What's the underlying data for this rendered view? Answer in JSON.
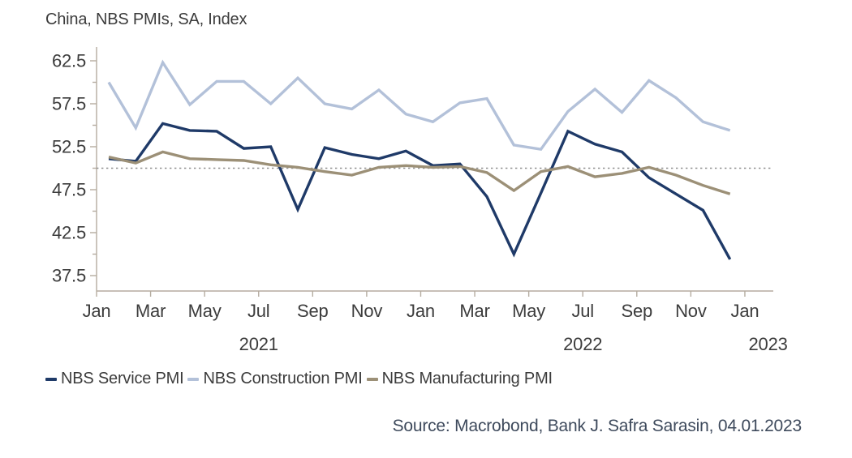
{
  "header": {
    "title": "China, NBS PMIs, SA, Index"
  },
  "footer": {
    "source": "Source: Macrobond, Bank J. Safra Sarasin, 04.01.2023"
  },
  "colors": {
    "service": "#1F3A68",
    "construction": "#B3C1D9",
    "manufacturing": "#9C9077",
    "axis": "#B5ACA0",
    "reference_line": "#909090",
    "text": "#3C3C3C",
    "source_text": "#3E4A5C"
  },
  "chart_data": {
    "type": "line",
    "title": "China, NBS PMIs, SA, Index",
    "xlabel": "",
    "ylabel": "",
    "grid": false,
    "legend_position": "bottom-left",
    "categories": [
      "Jan 2021",
      "Feb 2021",
      "Mar 2021",
      "Apr 2021",
      "May 2021",
      "Jun 2021",
      "Jul 2021",
      "Aug 2021",
      "Sep 2021",
      "Oct 2021",
      "Nov 2021",
      "Dec 2021",
      "Jan 2022",
      "Feb 2022",
      "Mar 2022",
      "Apr 2022",
      "May 2022",
      "Jun 2022",
      "Jul 2022",
      "Aug 2022",
      "Sep 2022",
      "Oct 2022",
      "Nov 2022",
      "Dec 2022"
    ],
    "series": [
      {
        "name": "NBS Service PMI",
        "color": "#1F3A68",
        "values": [
          51.1,
          50.8,
          55.2,
          54.4,
          54.3,
          52.3,
          52.5,
          45.2,
          52.4,
          51.6,
          51.1,
          52.0,
          50.3,
          50.5,
          46.7,
          40.0,
          47.1,
          54.3,
          52.8,
          51.9,
          48.9,
          47.0,
          45.1,
          39.4
        ]
      },
      {
        "name": "NBS Construction PMI",
        "color": "#B3C1D9",
        "values": [
          60.0,
          54.7,
          62.3,
          57.4,
          60.1,
          60.1,
          57.5,
          60.5,
          57.5,
          56.9,
          59.1,
          56.3,
          55.4,
          57.6,
          58.1,
          52.7,
          52.2,
          56.6,
          59.2,
          56.5,
          60.2,
          58.2,
          55.4,
          54.4
        ]
      },
      {
        "name": "NBS Manufacturing PMI",
        "color": "#9C9077",
        "values": [
          51.3,
          50.6,
          51.9,
          51.1,
          51.0,
          50.9,
          50.4,
          50.1,
          49.6,
          49.2,
          50.1,
          50.3,
          50.1,
          50.2,
          49.5,
          47.4,
          49.6,
          50.2,
          49.0,
          49.4,
          50.1,
          49.2,
          48.0,
          47.0
        ]
      }
    ],
    "y_axis": {
      "tick_labels": [
        "62.5",
        "57.5",
        "52.5",
        "47.5",
        "42.5",
        "37.5"
      ],
      "tick_values": [
        62.5,
        57.5,
        52.5,
        47.5,
        42.5,
        37.5
      ],
      "minor_tick_values": [
        60,
        55,
        50,
        45,
        40
      ],
      "range_shown": [
        35.7,
        64.1
      ]
    },
    "x_axis": {
      "tick_labels": [
        "Jan",
        "Mar",
        "May",
        "Jul",
        "Sep",
        "Nov",
        "Jan",
        "Mar",
        "May",
        "Jul",
        "Sep",
        "Nov",
        "Jan"
      ],
      "year_labels": [
        "2021",
        "2022",
        "2023"
      ]
    },
    "reference_line": {
      "value": 50,
      "style": "dotted",
      "color": "#909090"
    }
  }
}
